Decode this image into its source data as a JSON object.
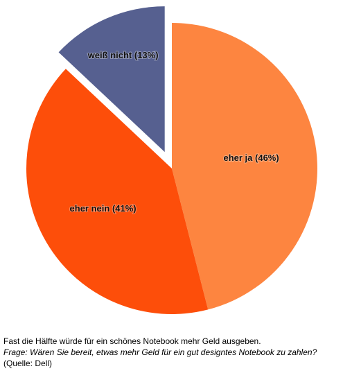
{
  "chart_data": {
    "type": "pie",
    "values": [
      46,
      41,
      13
    ],
    "value_labels": [
      "eher ja (46%)",
      "eher nein (41%)",
      "weiß nicht (13%)"
    ],
    "colors": [
      "#fd8540",
      "#fd4e0a",
      "#566090"
    ],
    "exploded": [
      false,
      false,
      true
    ],
    "title": "Fast die Hälfte würde für ein schönes Notebook mehr Geld ausgeben.",
    "subtitle": "Frage: Wären Sie bereit, etwas mehr Geld für ein gut designtes Notebook zu zahlen?",
    "source": "(Quelle: Dell)"
  }
}
